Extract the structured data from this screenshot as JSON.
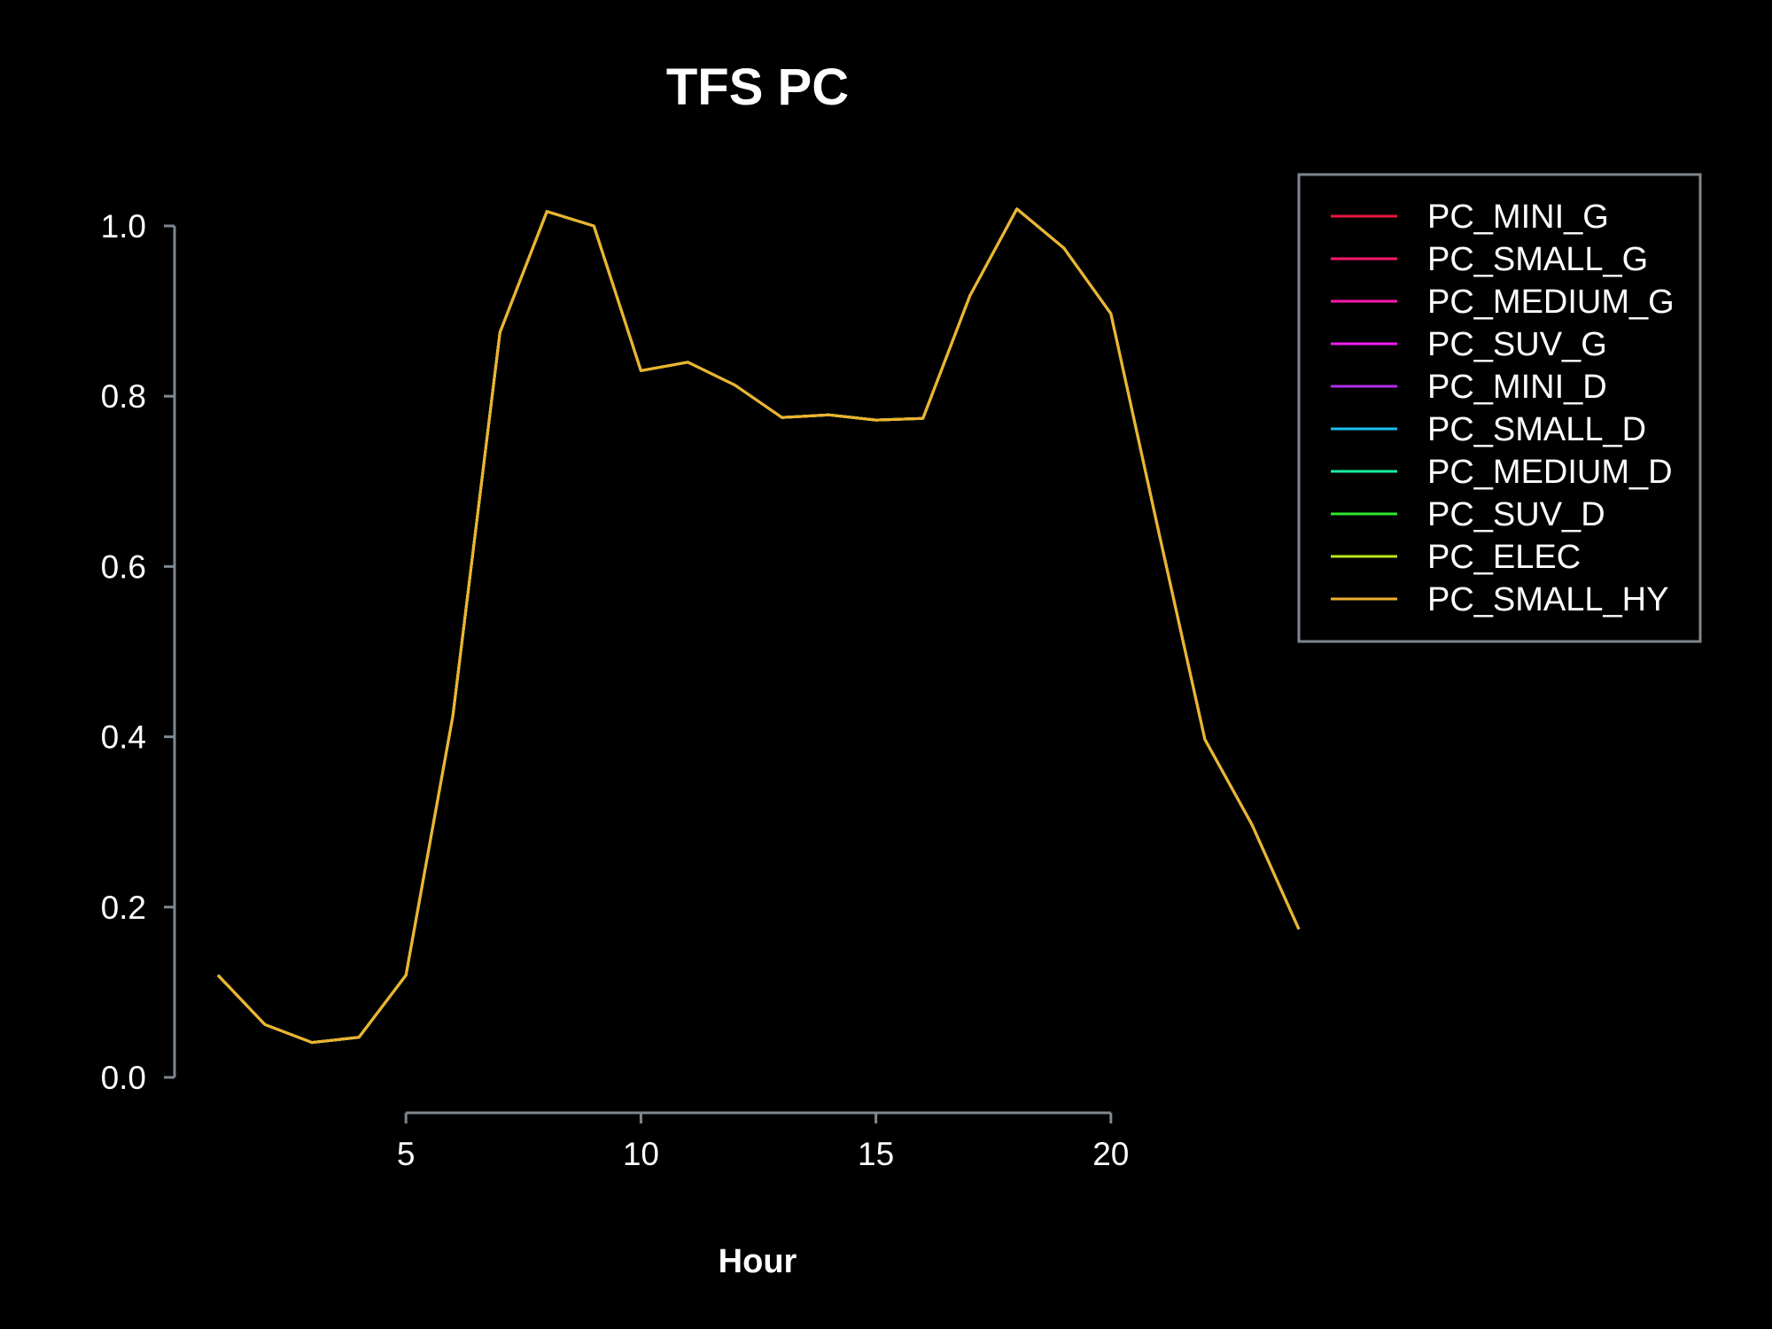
{
  "chart_data": {
    "type": "line",
    "title": "TFS PC",
    "xlabel": "Hour",
    "ylabel": "",
    "xlim": [
      1,
      24
    ],
    "ylim": [
      0,
      1.0
    ],
    "x_ticks": [
      5,
      10,
      15,
      20
    ],
    "y_ticks": [
      0.0,
      0.2,
      0.4,
      0.6,
      0.8,
      1.0
    ],
    "x_tick_labels": [
      "5",
      "10",
      "15",
      "20"
    ],
    "y_tick_labels": [
      "0.0",
      "0.2",
      "0.4",
      "0.6",
      "0.8",
      "1.0"
    ],
    "grid": false,
    "background": "#000000",
    "legend_position": "top-right",
    "x": [
      1,
      2,
      3,
      4,
      5,
      6,
      7,
      8,
      9,
      10,
      11,
      12,
      13,
      14,
      15,
      16,
      17,
      18,
      19,
      20,
      21,
      22,
      23,
      24
    ],
    "series": [
      {
        "name": "PC_MINI_G",
        "color": "#e8173d",
        "values": [
          0.12,
          0.062,
          0.041,
          0.047,
          0.12,
          0.425,
          0.875,
          1.017,
          1.0,
          0.83,
          0.84,
          0.813,
          0.775,
          0.778,
          0.772,
          0.774,
          0.918,
          1.02,
          0.974,
          0.897,
          0.645,
          0.397,
          0.297,
          0.174
        ]
      },
      {
        "name": "PC_SMALL_G",
        "color": "#ff1a6e",
        "values": [
          0.12,
          0.062,
          0.041,
          0.047,
          0.12,
          0.425,
          0.875,
          1.017,
          1.0,
          0.83,
          0.84,
          0.813,
          0.775,
          0.778,
          0.772,
          0.774,
          0.918,
          1.02,
          0.974,
          0.897,
          0.645,
          0.397,
          0.297,
          0.174
        ]
      },
      {
        "name": "PC_MEDIUM_G",
        "color": "#ff1aad",
        "values": [
          0.12,
          0.062,
          0.041,
          0.047,
          0.12,
          0.425,
          0.875,
          1.017,
          1.0,
          0.83,
          0.84,
          0.813,
          0.775,
          0.778,
          0.772,
          0.774,
          0.918,
          1.02,
          0.974,
          0.897,
          0.645,
          0.397,
          0.297,
          0.174
        ]
      },
      {
        "name": "PC_SUV_G",
        "color": "#f51df5",
        "values": [
          0.12,
          0.062,
          0.041,
          0.047,
          0.12,
          0.425,
          0.875,
          1.017,
          1.0,
          0.83,
          0.84,
          0.813,
          0.775,
          0.778,
          0.772,
          0.774,
          0.918,
          1.02,
          0.974,
          0.897,
          0.645,
          0.397,
          0.297,
          0.174
        ]
      },
      {
        "name": "PC_MINI_D",
        "color": "#b22ef0",
        "values": [
          0.12,
          0.062,
          0.041,
          0.047,
          0.12,
          0.425,
          0.875,
          1.017,
          1.0,
          0.83,
          0.84,
          0.813,
          0.775,
          0.778,
          0.772,
          0.774,
          0.918,
          1.02,
          0.974,
          0.897,
          0.645,
          0.397,
          0.297,
          0.174
        ]
      },
      {
        "name": "PC_SMALL_D",
        "color": "#1ac0f0",
        "values": [
          0.12,
          0.062,
          0.041,
          0.047,
          0.12,
          0.425,
          0.875,
          1.017,
          1.0,
          0.83,
          0.84,
          0.813,
          0.775,
          0.778,
          0.772,
          0.774,
          0.918,
          1.02,
          0.974,
          0.897,
          0.645,
          0.397,
          0.297,
          0.174
        ]
      },
      {
        "name": "PC_MEDIUM_D",
        "color": "#1af0a0",
        "values": [
          0.12,
          0.062,
          0.041,
          0.047,
          0.12,
          0.425,
          0.875,
          1.017,
          1.0,
          0.83,
          0.84,
          0.813,
          0.775,
          0.778,
          0.772,
          0.774,
          0.918,
          1.02,
          0.974,
          0.897,
          0.645,
          0.397,
          0.297,
          0.174
        ]
      },
      {
        "name": "PC_SUV_D",
        "color": "#2ee62e",
        "values": [
          0.12,
          0.062,
          0.041,
          0.047,
          0.12,
          0.425,
          0.875,
          1.017,
          1.0,
          0.83,
          0.84,
          0.813,
          0.775,
          0.778,
          0.772,
          0.774,
          0.918,
          1.02,
          0.974,
          0.897,
          0.645,
          0.397,
          0.297,
          0.174
        ]
      },
      {
        "name": "PC_ELEC",
        "color": "#b8e61a",
        "values": [
          0.12,
          0.062,
          0.041,
          0.047,
          0.12,
          0.425,
          0.875,
          1.017,
          1.0,
          0.83,
          0.84,
          0.813,
          0.775,
          0.778,
          0.772,
          0.774,
          0.918,
          1.02,
          0.974,
          0.897,
          0.645,
          0.397,
          0.297,
          0.174
        ]
      },
      {
        "name": "PC_SMALL_HY",
        "color": "#f0b22e",
        "values": [
          0.12,
          0.062,
          0.041,
          0.047,
          0.12,
          0.425,
          0.875,
          1.017,
          1.0,
          0.83,
          0.84,
          0.813,
          0.775,
          0.778,
          0.772,
          0.774,
          0.918,
          1.02,
          0.974,
          0.897,
          0.645,
          0.397,
          0.297,
          0.174
        ]
      }
    ]
  }
}
